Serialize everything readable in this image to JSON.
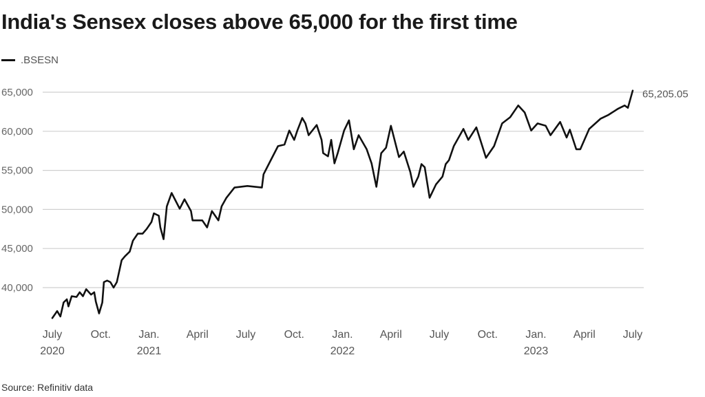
{
  "chart_data": {
    "type": "line",
    "title": "India's Sensex closes above 65,000 for the first time",
    "legend": [
      ".BSESN"
    ],
    "legend_placement": "top-left",
    "source": "Source: Refinitiv data",
    "xlabel": "",
    "ylabel": "",
    "ylim": [
      35500,
      66000
    ],
    "x_unit": "months since July 2020",
    "xlim": [
      0,
      36
    ],
    "grid": true,
    "yticks": [
      {
        "value": 40000,
        "label": "40,000"
      },
      {
        "value": 45000,
        "label": "45,000"
      },
      {
        "value": 50000,
        "label": "50,000"
      },
      {
        "value": 55000,
        "label": "55,000"
      },
      {
        "value": 60000,
        "label": "60,000"
      },
      {
        "value": 65000,
        "label": "65,000"
      }
    ],
    "xticks": [
      {
        "month": 0,
        "label": "July",
        "year": "2020"
      },
      {
        "month": 3,
        "label": "Oct.",
        "year": ""
      },
      {
        "month": 6,
        "label": "Jan.",
        "year": "2021"
      },
      {
        "month": 9,
        "label": "April",
        "year": ""
      },
      {
        "month": 12,
        "label": "July",
        "year": ""
      },
      {
        "month": 15,
        "label": "Oct.",
        "year": ""
      },
      {
        "month": 18,
        "label": "Jan.",
        "year": "2022"
      },
      {
        "month": 21,
        "label": "April",
        "year": ""
      },
      {
        "month": 24,
        "label": "July",
        "year": ""
      },
      {
        "month": 27,
        "label": "Oct.",
        "year": ""
      },
      {
        "month": 30,
        "label": "Jan.",
        "year": "2023"
      },
      {
        "month": 33,
        "label": "April",
        "year": ""
      },
      {
        "month": 36,
        "label": "July",
        "year": ""
      }
    ],
    "end_label": "65,205.05",
    "series": [
      {
        "name": ".BSESN",
        "color": "#111111",
        "x": [
          0,
          0.2,
          0.3,
          0.5,
          0.7,
          0.9,
          1.0,
          1.2,
          1.5,
          1.7,
          1.9,
          2.1,
          2.4,
          2.6,
          2.7,
          2.9,
          3.1,
          3.2,
          3.4,
          3.6,
          3.8,
          4.0,
          4.3,
          4.5,
          4.8,
          5.0,
          5.3,
          5.6,
          5.85,
          6.15,
          6.3,
          6.6,
          6.7,
          6.9,
          7.1,
          7.4,
          7.9,
          8.2,
          8.6,
          8.7,
          9.3,
          9.6,
          9.9,
          10.3,
          10.5,
          10.8,
          11.3,
          12.1,
          13.0,
          13.1,
          13.4,
          14.0,
          14.4,
          14.7,
          15.0,
          15.2,
          15.5,
          15.7,
          15.9,
          16.4,
          16.7,
          16.8,
          17.1,
          17.3,
          17.5,
          17.7,
          18.1,
          18.4,
          18.7,
          19.0,
          19.5,
          19.8,
          20.1,
          20.4,
          20.7,
          21.0,
          21.5,
          21.8,
          22.2,
          22.4,
          22.7,
          22.9,
          23.1,
          23.4,
          23.8,
          24.2,
          24.4,
          24.6,
          24.9,
          25.5,
          25.8,
          26.3,
          26.9,
          27.4,
          27.9,
          28.4,
          28.9,
          29.3,
          29.7,
          30.1,
          30.6,
          30.9,
          31.5,
          31.9,
          32.1,
          32.5,
          32.75,
          33.3,
          34.0,
          34.5,
          35.1,
          35.5,
          35.7,
          36.0
        ],
        "values": [
          36100,
          36700,
          37000,
          36300,
          38100,
          38500,
          37600,
          38900,
          38800,
          39400,
          38900,
          39800,
          39100,
          39400,
          38200,
          36700,
          38100,
          40700,
          40900,
          40700,
          40000,
          40700,
          43500,
          44000,
          44600,
          46000,
          46900,
          46900,
          47500,
          48400,
          49500,
          49200,
          47700,
          46200,
          50400,
          52100,
          50100,
          51300,
          49800,
          48600,
          48600,
          47700,
          49800,
          48600,
          50400,
          51500,
          52800,
          53000,
          52800,
          54500,
          55700,
          58100,
          58300,
          60100,
          58900,
          60100,
          61700,
          61000,
          59500,
          60800,
          58900,
          57200,
          56800,
          58900,
          55900,
          57200,
          60100,
          61400,
          57700,
          59500,
          57700,
          55900,
          52900,
          57200,
          57900,
          60700,
          56700,
          57400,
          54800,
          52900,
          54200,
          55800,
          55400,
          51500,
          53200,
          54200,
          55800,
          56300,
          58100,
          60300,
          58900,
          60500,
          56600,
          58100,
          61000,
          61800,
          63300,
          62400,
          60100,
          61000,
          60700,
          59500,
          61200,
          59200,
          60200,
          57700,
          57700,
          60300,
          61600,
          62100,
          62900,
          63300,
          63000,
          65205.05
        ]
      }
    ]
  }
}
